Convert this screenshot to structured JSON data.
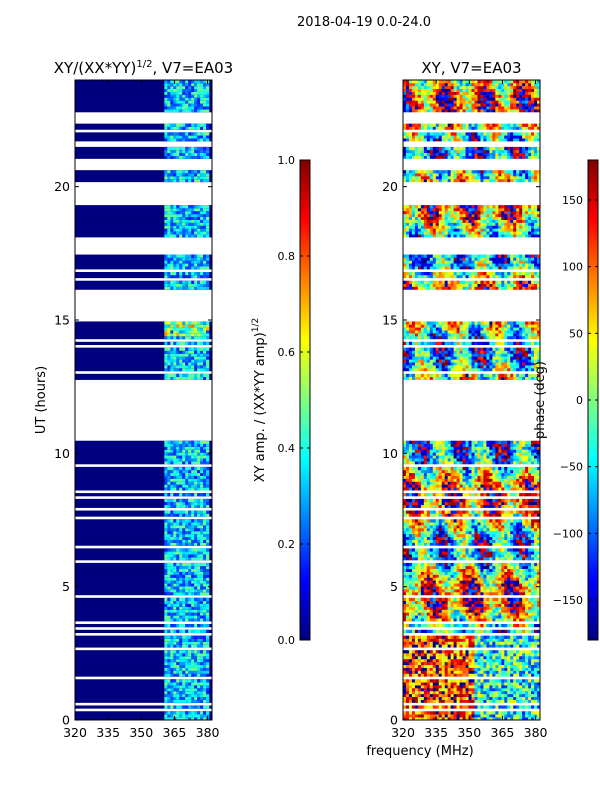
{
  "figure": {
    "suptitle": "2018-04-19 0.0-24.0",
    "xlabel": "frequency (MHz)"
  },
  "colors": {
    "background": "#00007f",
    "jet_stops": [
      "#00007f",
      "#0000ff",
      "#007fff",
      "#00ffff",
      "#7fff7f",
      "#ffff00",
      "#ff7f00",
      "#ff0000",
      "#7f0000"
    ]
  },
  "chart_data": [
    {
      "type": "heatmap",
      "title": "XY/(XX*YY)^{1/2}, V7=EA03",
      "title_main": "XY/(XX*YY)",
      "title_exp": "1/2",
      "title_tail": ", V7=EA03",
      "xlabel": "frequency (MHz)",
      "ylabel": "UT (hours)",
      "xlim": [
        320,
        382
      ],
      "ylim": [
        0,
        24
      ],
      "xticks": [
        320,
        335,
        350,
        365,
        380
      ],
      "yticks": [
        0,
        5,
        10,
        15,
        20
      ],
      "active_band_mhz": [
        361,
        380
      ],
      "colorbar": {
        "label": "XY amp. / (XX*YY amp)^{1/2}",
        "label_main": "XY amp. / (XX*YY amp)",
        "label_exp": "1/2",
        "min": 0.0,
        "max": 1.0,
        "ticks": [
          0.0,
          0.2,
          0.4,
          0.6,
          0.8,
          1.0
        ],
        "ticklabels": [
          "0.0",
          "0.2",
          "0.4",
          "0.6",
          "0.8",
          "1.0"
        ],
        "colormap": "jet"
      }
    },
    {
      "type": "heatmap",
      "title": "XY, V7=EA03",
      "xlabel": "frequency (MHz)",
      "ylabel": "",
      "xlim": [
        320,
        382
      ],
      "ylim": [
        0,
        24
      ],
      "xticks": [
        320,
        335,
        350,
        365,
        380
      ],
      "yticks": [
        0,
        5,
        10,
        15,
        20
      ],
      "colorbar": {
        "label": "phase (deg)",
        "min": -180,
        "max": 180,
        "ticks": [
          -150,
          -100,
          -50,
          0,
          50,
          100,
          150
        ],
        "ticklabels": [
          "−150",
          "−100",
          "−50",
          "0",
          "50",
          "100",
          "150"
        ],
        "colormap": "jet"
      }
    }
  ],
  "data_gaps_ut_hours": [
    [
      0.3,
      0.45
    ],
    [
      0.58,
      0.65
    ],
    [
      1.55,
      1.62
    ],
    [
      2.6,
      2.68
    ],
    [
      3.15,
      3.22
    ],
    [
      3.4,
      3.46
    ],
    [
      3.62,
      3.68
    ],
    [
      4.25,
      4.3
    ],
    [
      4.6,
      4.65
    ],
    [
      4.9,
      4.95
    ],
    [
      5.3,
      5.36
    ],
    [
      5.55,
      5.6
    ],
    [
      5.92,
      5.98
    ],
    [
      6.45,
      6.5
    ],
    [
      6.85,
      6.92
    ],
    [
      7.2,
      7.25
    ],
    [
      7.55,
      7.6
    ],
    [
      7.9,
      7.97
    ],
    [
      8.3,
      8.35
    ],
    [
      8.55,
      8.6
    ],
    [
      8.95,
      9.0
    ],
    [
      9.5,
      9.55
    ],
    [
      9.8,
      9.85
    ],
    [
      10.15,
      10.2
    ],
    [
      10.5,
      11.3
    ],
    [
      11.35,
      12.8
    ],
    [
      13.0,
      13.07
    ],
    [
      13.3,
      13.35
    ],
    [
      13.5,
      13.56
    ],
    [
      14.0,
      14.07
    ],
    [
      14.2,
      14.26
    ],
    [
      14.5,
      14.55
    ],
    [
      15.0,
      16.2
    ],
    [
      16.5,
      16.55
    ],
    [
      16.8,
      16.86
    ],
    [
      17.1,
      17.15
    ],
    [
      17.5,
      18.1
    ],
    [
      18.4,
      18.47
    ],
    [
      18.85,
      18.9
    ],
    [
      19.3,
      20.2
    ],
    [
      20.35,
      20.42
    ],
    [
      20.6,
      21.05
    ],
    [
      21.45,
      21.75
    ],
    [
      22.05,
      22.12
    ],
    [
      22.35,
      22.75
    ],
    [
      23.0,
      23.05
    ],
    [
      23.3,
      23.35
    ],
    [
      23.65,
      23.7
    ],
    [
      23.85,
      23.9
    ]
  ]
}
